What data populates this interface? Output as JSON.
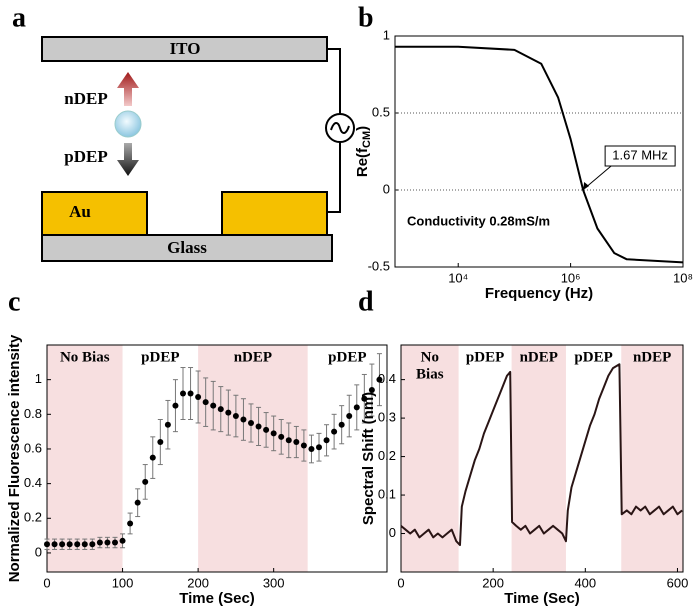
{
  "panel_labels": [
    "a",
    "b",
    "c",
    "d"
  ],
  "diagram": {
    "top_electrode": "ITO",
    "bottom_layer": "Glass",
    "electrode": "Au",
    "upper_arrow": "nDEP",
    "lower_arrow": "pDEP"
  },
  "chart_data": [
    {
      "type": "line",
      "log_x": true,
      "color": "#000000",
      "x": [
        750,
        10000,
        100000,
        300000,
        600000,
        1000000,
        1670000,
        3000000,
        6000000,
        10000000,
        100000000
      ],
      "values": [
        0.93,
        0.93,
        0.91,
        0.82,
        0.6,
        0.33,
        0,
        -0.25,
        -0.41,
        -0.45,
        -0.47
      ],
      "xlim": [
        750,
        100000000
      ],
      "xticks": [
        {
          "value": 10000,
          "label": "10⁴"
        },
        {
          "value": 1000000,
          "label": "10⁶"
        },
        {
          "value": 100000000,
          "label": "10⁸"
        }
      ],
      "ylim": [
        -0.5,
        1
      ],
      "yticks": [
        -0.5,
        0,
        0.5,
        1
      ],
      "grid": true,
      "xlabel": "Frequency (Hz)",
      "ylabel": "Re(f",
      "ylabel_sub": "CM",
      "ylabel_end": ")",
      "annotations": [
        {
          "text": "1.67 MHz",
          "x": 1670000,
          "y": 0
        },
        {
          "text": "Conductivity 0.28mS/m"
        }
      ]
    },
    {
      "type": "scatter",
      "color": "#000000",
      "region_color": "#f7dfe0",
      "x": [
        0,
        10,
        20,
        30,
        40,
        50,
        60,
        70,
        80,
        90,
        100,
        110,
        120,
        130,
        140,
        150,
        160,
        170,
        180,
        190,
        200,
        210,
        220,
        230,
        240,
        250,
        260,
        270,
        280,
        290,
        300,
        310,
        320,
        330,
        340,
        350,
        360,
        370,
        380,
        390,
        400,
        410,
        420,
        430,
        440
      ],
      "values": [
        0.05,
        0.05,
        0.05,
        0.05,
        0.05,
        0.05,
        0.05,
        0.06,
        0.06,
        0.06,
        0.07,
        0.17,
        0.29,
        0.41,
        0.55,
        0.64,
        0.74,
        0.85,
        0.92,
        0.92,
        0.9,
        0.87,
        0.85,
        0.83,
        0.81,
        0.79,
        0.77,
        0.75,
        0.73,
        0.71,
        0.69,
        0.67,
        0.65,
        0.64,
        0.62,
        0.6,
        0.61,
        0.65,
        0.7,
        0.74,
        0.79,
        0.84,
        0.89,
        0.94,
        1.0
      ],
      "errors": [
        0.03,
        0.03,
        0.03,
        0.03,
        0.03,
        0.03,
        0.03,
        0.03,
        0.03,
        0.03,
        0.04,
        0.06,
        0.08,
        0.1,
        0.12,
        0.13,
        0.14,
        0.15,
        0.15,
        0.15,
        0.15,
        0.14,
        0.14,
        0.13,
        0.13,
        0.12,
        0.12,
        0.11,
        0.11,
        0.1,
        0.1,
        0.1,
        0.1,
        0.09,
        0.09,
        0.08,
        0.08,
        0.09,
        0.1,
        0.11,
        0.12,
        0.13,
        0.14,
        0.15,
        0.15
      ],
      "regions": [
        {
          "label": "No Bias",
          "start": 0,
          "end": 100,
          "shaded": true
        },
        {
          "label": "pDEP",
          "start": 100,
          "end": 200,
          "shaded": false
        },
        {
          "label": "nDEP",
          "start": 200,
          "end": 345,
          "shaded": true
        },
        {
          "label": "pDEP",
          "start": 345,
          "end": 450,
          "shaded": false
        }
      ],
      "xlim": [
        0,
        450
      ],
      "xticks": [
        0,
        100,
        200,
        300
      ],
      "ylim": [
        -0.11,
        1.2
      ],
      "yticks": [
        0,
        0.2,
        0.4,
        0.6,
        0.8,
        1
      ],
      "xlabel": "Time (Sec)",
      "ylabel": "Normalized Fluorescence intensity"
    },
    {
      "type": "line",
      "color": "#2a1515",
      "region_color": "#f7dfe0",
      "x": [
        0,
        10,
        20,
        30,
        40,
        50,
        60,
        70,
        80,
        90,
        100,
        110,
        120,
        128,
        132,
        140,
        150,
        160,
        170,
        180,
        190,
        200,
        210,
        220,
        230,
        237,
        241,
        250,
        260,
        270,
        280,
        290,
        300,
        310,
        320,
        330,
        340,
        350,
        358,
        362,
        370,
        380,
        390,
        400,
        410,
        420,
        430,
        440,
        450,
        460,
        474,
        479,
        490,
        500,
        510,
        520,
        530,
        540,
        550,
        560,
        570,
        580,
        590,
        600,
        610
      ],
      "values": [
        0.02,
        0.01,
        0,
        0.01,
        -0.01,
        0,
        0.01,
        -0.01,
        0,
        -0.01,
        0,
        0.01,
        -0.02,
        -0.03,
        0.07,
        0.11,
        0.15,
        0.19,
        0.22,
        0.26,
        0.29,
        0.32,
        0.35,
        0.38,
        0.41,
        0.42,
        0.03,
        0.02,
        0.01,
        0.02,
        0,
        0.01,
        0.02,
        0,
        0.01,
        0.02,
        0.01,
        0,
        -0.02,
        0.06,
        0.12,
        0.16,
        0.2,
        0.24,
        0.28,
        0.31,
        0.35,
        0.38,
        0.41,
        0.43,
        0.44,
        0.05,
        0.06,
        0.05,
        0.07,
        0.06,
        0.07,
        0.05,
        0.06,
        0.07,
        0.05,
        0.06,
        0.07,
        0.05,
        0.06
      ],
      "regions": [
        {
          "label": [
            "No",
            "Bias"
          ],
          "start": 0,
          "end": 125,
          "shaded": true
        },
        {
          "label": "pDEP",
          "start": 125,
          "end": 240,
          "shaded": false
        },
        {
          "label": "nDEP",
          "start": 240,
          "end": 358,
          "shaded": true
        },
        {
          "label": "pDEP",
          "start": 358,
          "end": 478,
          "shaded": false
        },
        {
          "label": "nDEP",
          "start": 478,
          "end": 612,
          "shaded": true
        }
      ],
      "xlim": [
        0,
        612
      ],
      "xticks": [
        0,
        200,
        400,
        600
      ],
      "ylim": [
        -0.1,
        0.49
      ],
      "yticks": [
        0,
        0.1,
        0.2,
        0.3,
        0.4
      ],
      "xlabel": "Time (Sec)",
      "ylabel": "Spectral Shift (nm)"
    }
  ]
}
